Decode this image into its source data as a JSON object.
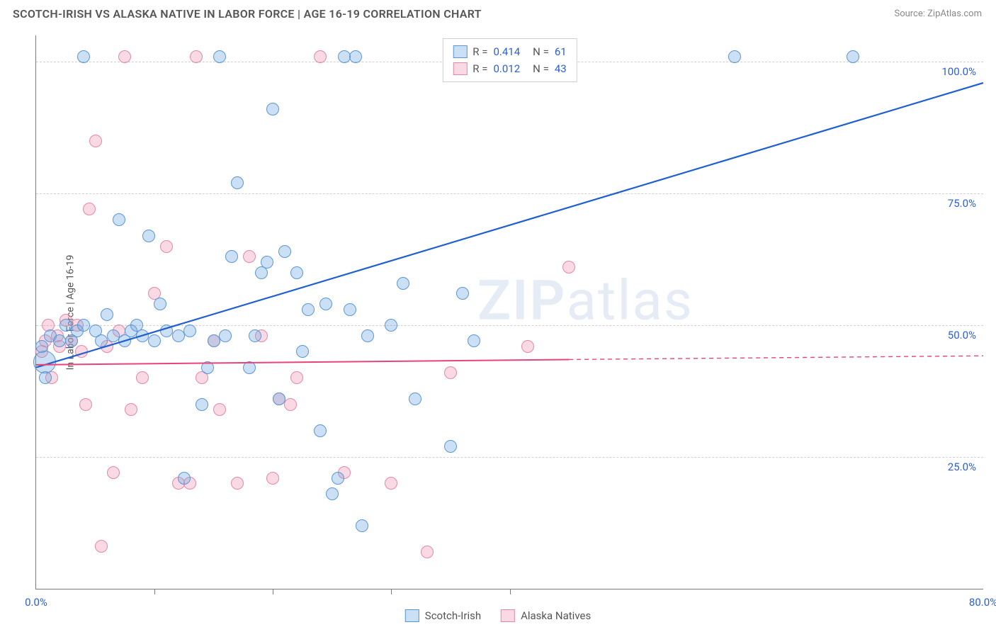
{
  "header": {
    "title": "SCOTCH-IRISH VS ALASKA NATIVE IN LABOR FORCE | AGE 16-19 CORRELATION CHART",
    "source": "Source: ZipAtlas.com"
  },
  "chart": {
    "ylabel": "In Labor Force | Age 16-19",
    "watermark_a": "ZIP",
    "watermark_b": "atlas",
    "xlim": [
      0,
      80
    ],
    "ylim": [
      0,
      105
    ],
    "x_axis_color": "#2a5fd8",
    "y_axis_color": "#2a5fd8",
    "grid_color": "#d0d0d0",
    "yticks": [
      {
        "v": 25,
        "label": "25.0%"
      },
      {
        "v": 50,
        "label": "50.0%"
      },
      {
        "v": 75,
        "label": "75.0%"
      },
      {
        "v": 100,
        "label": "100.0%"
      }
    ],
    "xticks_major": [
      {
        "v": 0,
        "label": "0.0%"
      },
      {
        "v": 80,
        "label": "80.0%"
      }
    ],
    "xticks_minor": [
      10,
      20,
      30,
      40
    ],
    "series": {
      "scotch_irish": {
        "label": "Scotch-Irish",
        "fill": "rgba(110,165,225,0.35)",
        "stroke": "#5a96d6",
        "marker_radius": 9,
        "R": "0.414",
        "N": "61",
        "trend": {
          "x1": 0,
          "y1": 42,
          "x2": 80,
          "y2": 96,
          "color": "#1f5fd0",
          "width": 2.2
        },
        "points": [
          {
            "x": 0.7,
            "y": 43,
            "r": 16
          },
          {
            "x": 0.5,
            "y": 46
          },
          {
            "x": 0.8,
            "y": 40
          },
          {
            "x": 1.2,
            "y": 48
          },
          {
            "x": 2,
            "y": 47
          },
          {
            "x": 2.5,
            "y": 50
          },
          {
            "x": 3,
            "y": 47
          },
          {
            "x": 3.5,
            "y": 49
          },
          {
            "x": 4,
            "y": 50
          },
          {
            "x": 4,
            "y": 101
          },
          {
            "x": 5,
            "y": 49
          },
          {
            "x": 5.5,
            "y": 47
          },
          {
            "x": 6,
            "y": 52
          },
          {
            "x": 6.5,
            "y": 48
          },
          {
            "x": 7,
            "y": 70
          },
          {
            "x": 7.5,
            "y": 47
          },
          {
            "x": 8,
            "y": 49
          },
          {
            "x": 8.5,
            "y": 50
          },
          {
            "x": 9,
            "y": 48
          },
          {
            "x": 9.5,
            "y": 67
          },
          {
            "x": 10,
            "y": 47
          },
          {
            "x": 10.5,
            "y": 54
          },
          {
            "x": 11,
            "y": 49
          },
          {
            "x": 12,
            "y": 48
          },
          {
            "x": 12.5,
            "y": 21
          },
          {
            "x": 13,
            "y": 49
          },
          {
            "x": 14,
            "y": 35
          },
          {
            "x": 14.5,
            "y": 42
          },
          {
            "x": 15,
            "y": 47
          },
          {
            "x": 15.5,
            "y": 101
          },
          {
            "x": 16,
            "y": 48
          },
          {
            "x": 16.5,
            "y": 63
          },
          {
            "x": 17,
            "y": 77
          },
          {
            "x": 18,
            "y": 42
          },
          {
            "x": 18.5,
            "y": 48
          },
          {
            "x": 19,
            "y": 60
          },
          {
            "x": 19.5,
            "y": 62
          },
          {
            "x": 20,
            "y": 91
          },
          {
            "x": 20.5,
            "y": 36
          },
          {
            "x": 21,
            "y": 64
          },
          {
            "x": 22,
            "y": 60
          },
          {
            "x": 22.5,
            "y": 45
          },
          {
            "x": 23,
            "y": 53
          },
          {
            "x": 24,
            "y": 30
          },
          {
            "x": 24.5,
            "y": 54
          },
          {
            "x": 25,
            "y": 18
          },
          {
            "x": 25.5,
            "y": 21
          },
          {
            "x": 26,
            "y": 101
          },
          {
            "x": 26.5,
            "y": 53
          },
          {
            "x": 27,
            "y": 101
          },
          {
            "x": 27.5,
            "y": 12
          },
          {
            "x": 28,
            "y": 48
          },
          {
            "x": 30,
            "y": 50
          },
          {
            "x": 31,
            "y": 58
          },
          {
            "x": 32,
            "y": 36
          },
          {
            "x": 35,
            "y": 27
          },
          {
            "x": 36,
            "y": 56
          },
          {
            "x": 37,
            "y": 47
          },
          {
            "x": 41,
            "y": 101
          },
          {
            "x": 59,
            "y": 101
          },
          {
            "x": 69,
            "y": 101
          }
        ]
      },
      "alaska": {
        "label": "Alaska Natives",
        "fill": "rgba(235,140,170,0.32)",
        "stroke": "#e387a8",
        "marker_radius": 9,
        "R": "0.012",
        "N": "43",
        "trend_solid": {
          "x1": 0,
          "y1": 42.5,
          "x2": 45,
          "y2": 43.5,
          "color": "#e8447a",
          "width": 2
        },
        "trend_dash": {
          "x1": 45,
          "y1": 43.5,
          "x2": 80,
          "y2": 44.2,
          "color": "#e8447a",
          "width": 1.4
        },
        "points": [
          {
            "x": 0.5,
            "y": 45
          },
          {
            "x": 0.8,
            "y": 47
          },
          {
            "x": 1,
            "y": 50
          },
          {
            "x": 1.3,
            "y": 40
          },
          {
            "x": 1.8,
            "y": 48
          },
          {
            "x": 2,
            "y": 46
          },
          {
            "x": 2.5,
            "y": 51
          },
          {
            "x": 3,
            "y": 47
          },
          {
            "x": 3.5,
            "y": 50
          },
          {
            "x": 3.8,
            "y": 45
          },
          {
            "x": 4.2,
            "y": 35
          },
          {
            "x": 4.5,
            "y": 72
          },
          {
            "x": 5,
            "y": 85
          },
          {
            "x": 5.5,
            "y": 8
          },
          {
            "x": 6,
            "y": 46
          },
          {
            "x": 6.5,
            "y": 22
          },
          {
            "x": 7,
            "y": 49
          },
          {
            "x": 7.5,
            "y": 101
          },
          {
            "x": 8,
            "y": 34
          },
          {
            "x": 9,
            "y": 40
          },
          {
            "x": 10,
            "y": 56
          },
          {
            "x": 11,
            "y": 65
          },
          {
            "x": 12,
            "y": 20
          },
          {
            "x": 13,
            "y": 20
          },
          {
            "x": 13.5,
            "y": 101
          },
          {
            "x": 14,
            "y": 40
          },
          {
            "x": 15,
            "y": 47
          },
          {
            "x": 15.5,
            "y": 34
          },
          {
            "x": 17,
            "y": 20
          },
          {
            "x": 18,
            "y": 63
          },
          {
            "x": 19,
            "y": 48
          },
          {
            "x": 20,
            "y": 21
          },
          {
            "x": 20.5,
            "y": 36
          },
          {
            "x": 21.5,
            "y": 35
          },
          {
            "x": 22,
            "y": 40
          },
          {
            "x": 24,
            "y": 101
          },
          {
            "x": 26,
            "y": 22
          },
          {
            "x": 30,
            "y": 20
          },
          {
            "x": 33,
            "y": 7
          },
          {
            "x": 35,
            "y": 41
          },
          {
            "x": 41,
            "y": 101
          },
          {
            "x": 41.5,
            "y": 46
          },
          {
            "x": 45,
            "y": 61
          }
        ]
      }
    },
    "legend_r_color": "#2a5fd8",
    "legend_text_color": "#555"
  }
}
